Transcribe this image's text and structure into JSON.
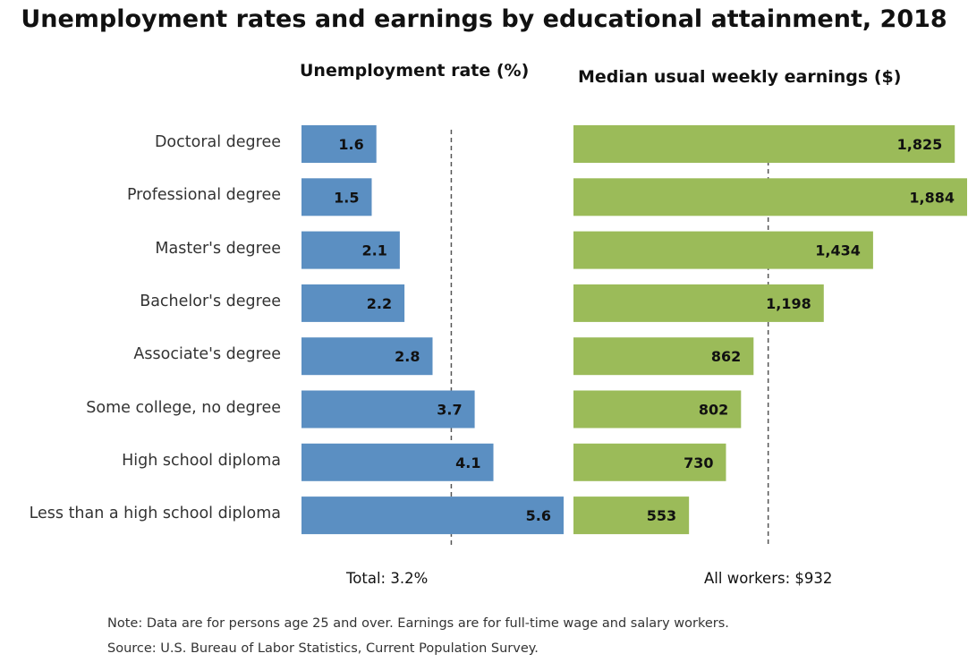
{
  "chart_data": {
    "type": "bar",
    "orientation": "horizontal",
    "title": "Unemployment rates and earnings by educational attainment, 2018",
    "categories": [
      "Doctoral degree",
      "Professional degree",
      "Master's degree",
      "Bachelor's degree",
      "Associate's degree",
      "Some college, no degree",
      "High school diploma",
      "Less than a high school diploma"
    ],
    "panels": [
      {
        "title": "Unemployment rate (%)",
        "value_labels": [
          "1.6",
          "1.5",
          "2.1",
          "2.2",
          "2.8",
          "3.7",
          "4.1",
          "5.6"
        ],
        "values": [
          1.6,
          1.5,
          2.1,
          2.2,
          2.8,
          3.7,
          4.1,
          5.6
        ],
        "xlim": [
          0,
          5.6
        ],
        "color": "#5b8fc2",
        "reference": {
          "value": 3.2,
          "label": "Total: 3.2%"
        }
      },
      {
        "title": "Median usual weekly earnings ($)",
        "value_labels": [
          "1,825",
          "1,884",
          "1,434",
          "1,198",
          "862",
          "802",
          "730",
          "553"
        ],
        "values": [
          1825,
          1884,
          1434,
          1198,
          862,
          802,
          730,
          553
        ],
        "xlim": [
          0,
          1884
        ],
        "color": "#9bbb59",
        "reference": {
          "value": 932,
          "label": "All workers: $932"
        }
      }
    ],
    "grid": false,
    "legend": "none"
  },
  "footnotes": {
    "note": "Note: Data are for persons age 25 and over. Earnings are for full-time wage and salary workers.",
    "source": "Source: U.S. Bureau of Labor Statistics, Current Population Survey."
  }
}
